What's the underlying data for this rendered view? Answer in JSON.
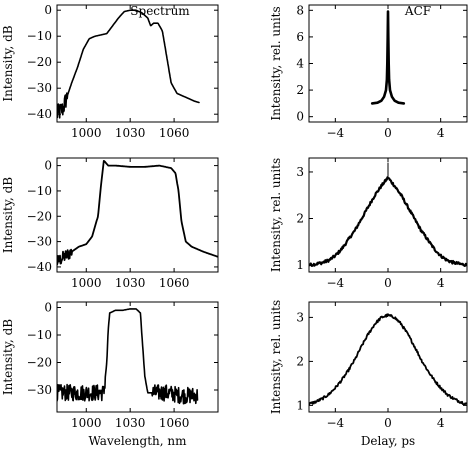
{
  "chart_data": [
    {
      "id": "spectrum-1",
      "type": "line",
      "title": "Spectrum",
      "xlabel": "",
      "ylabel": "Intensity, dB",
      "xlim": [
        980,
        1090
      ],
      "ylim": [
        -43,
        2
      ],
      "xticks": [
        1000,
        1030,
        1060
      ],
      "yticks": [
        0,
        -10,
        -20,
        -30,
        -40
      ],
      "xtick_labels": [
        "1000",
        "1030",
        "1060"
      ],
      "ytick_labels": [
        "0",
        "−10",
        "−20",
        "−30",
        "−40"
      ],
      "noise": {
        "x_from": 980,
        "x_to": 987,
        "amplitude": 3.5
      },
      "series": [
        {
          "x": [
            980,
            984,
            987,
            990,
            994,
            998,
            1002,
            1006,
            1010,
            1014,
            1018,
            1022,
            1026,
            1030,
            1034,
            1038,
            1042,
            1044,
            1046,
            1049,
            1052,
            1055,
            1058,
            1062,
            1066,
            1070,
            1074,
            1077
          ],
          "y": [
            -40,
            -38,
            -33,
            -28,
            -22,
            -15,
            -11,
            -10,
            -9.5,
            -9,
            -6,
            -3,
            -0.5,
            0,
            0,
            -1,
            -3,
            -6,
            -5,
            -5,
            -8,
            -18,
            -28,
            -32,
            -33,
            -34,
            -35,
            -35.5
          ]
        }
      ]
    },
    {
      "id": "acf-1",
      "type": "line",
      "title": "ACF",
      "xlabel": "",
      "ylabel": "Intensity, rel. units",
      "xlim": [
        -6,
        6
      ],
      "ylim": [
        -0.4,
        8.4
      ],
      "xticks": [
        -4,
        0,
        4
      ],
      "yticks": [
        0,
        2,
        4,
        6,
        8
      ],
      "xtick_labels": [
        "−4",
        "0",
        "4"
      ],
      "ytick_labels": [
        "0",
        "2",
        "4",
        "6",
        "8"
      ],
      "series": [
        {
          "x": [
            -1.2,
            -0.8,
            -0.5,
            -0.3,
            -0.15,
            -0.08,
            -0.05,
            -0.02,
            0,
            0.02,
            0.05,
            0.08,
            0.15,
            0.3,
            0.5,
            0.8,
            1.2
          ],
          "y": [
            1,
            1.05,
            1.2,
            1.5,
            2,
            2.8,
            4,
            6,
            7.9,
            6,
            4,
            2.8,
            2,
            1.5,
            1.2,
            1.05,
            1
          ]
        }
      ]
    },
    {
      "id": "spectrum-2",
      "type": "line",
      "title": "",
      "xlabel": "",
      "ylabel": "Intensity, dB",
      "xlim": [
        980,
        1090
      ],
      "ylim": [
        -42,
        3
      ],
      "xticks": [
        1000,
        1030,
        1060
      ],
      "yticks": [
        0,
        -10,
        -20,
        -30,
        -40
      ],
      "xtick_labels": [
        "1000",
        "1030",
        "1060"
      ],
      "ytick_labels": [
        "0",
        "−10",
        "−20",
        "−30",
        "−40"
      ],
      "noise": {
        "x_from": 980,
        "x_to": 990,
        "amplitude": 2.5
      },
      "series": [
        {
          "x": [
            980,
            985,
            990,
            995,
            1000,
            1004,
            1008,
            1010,
            1012,
            1015,
            1020,
            1030,
            1040,
            1050,
            1058,
            1061,
            1063,
            1065,
            1068,
            1072,
            1076,
            1080,
            1085,
            1090
          ],
          "y": [
            -38,
            -36,
            -34,
            -32,
            -31,
            -28,
            -20,
            -8,
            2,
            0,
            0,
            -0.5,
            -0.5,
            0,
            -1,
            -3,
            -10,
            -22,
            -30,
            -32,
            -33,
            -34,
            -35,
            -36
          ]
        }
      ]
    },
    {
      "id": "acf-2",
      "type": "line",
      "title": "",
      "xlabel": "",
      "ylabel": "Intensity, rel. units",
      "xlim": [
        -6,
        6
      ],
      "ylim": [
        0.85,
        3.3
      ],
      "xticks": [
        -4,
        0,
        4
      ],
      "yticks": [
        1,
        2,
        3
      ],
      "xtick_labels": [
        "−4",
        "0",
        "4"
      ],
      "ytick_labels": [
        "1",
        "2",
        "3"
      ],
      "spike": {
        "x": 0,
        "y": 3.2
      },
      "series": [
        {
          "x": [
            -6,
            -5.5,
            -5,
            -4.5,
            -4,
            -3.5,
            -3,
            -2.5,
            -2,
            -1.5,
            -1,
            -0.5,
            0,
            0.5,
            1,
            1.5,
            2,
            2.5,
            3,
            3.5,
            4,
            4.5,
            5,
            5.5,
            6
          ],
          "y": [
            1,
            1.02,
            1.05,
            1.1,
            1.2,
            1.35,
            1.55,
            1.75,
            2,
            2.25,
            2.5,
            2.7,
            2.88,
            2.7,
            2.5,
            2.25,
            2,
            1.75,
            1.55,
            1.35,
            1.2,
            1.1,
            1.05,
            1.02,
            1
          ]
        }
      ]
    },
    {
      "id": "spectrum-3",
      "type": "line",
      "title": "",
      "xlabel": "Wavelength, nm",
      "ylabel": "Intensity, dB",
      "xlim": [
        980,
        1090
      ],
      "ylim": [
        -38,
        2
      ],
      "xticks": [
        1000,
        1030,
        1060
      ],
      "yticks": [
        0,
        -10,
        -20,
        -30
      ],
      "xtick_labels": [
        "1000",
        "1030",
        "1060"
      ],
      "ytick_labels": [
        "0",
        "−10",
        "−20",
        "−30"
      ],
      "noise": {
        "x_from": 980,
        "x_to": 1076,
        "amplitude": 3,
        "skip_from": 1013,
        "skip_to": 1045
      },
      "series": [
        {
          "x": [
            980,
            1000,
            1012,
            1014,
            1015,
            1016,
            1020,
            1025,
            1030,
            1034,
            1037,
            1038,
            1040,
            1042,
            1044,
            1055,
            1065,
            1076
          ],
          "y": [
            -31,
            -31,
            -31,
            -20,
            -8,
            -2,
            -1,
            -1,
            -0.5,
            -0.5,
            -2,
            -10,
            -25,
            -31,
            -31,
            -31,
            -32,
            -32
          ]
        }
      ]
    },
    {
      "id": "acf-3",
      "type": "line",
      "title": "",
      "xlabel": "Delay, ps",
      "ylabel": "Intensity, rel. units",
      "xlim": [
        -6,
        6
      ],
      "ylim": [
        0.85,
        3.35
      ],
      "xticks": [
        -4,
        0,
        4
      ],
      "yticks": [
        1,
        2,
        3
      ],
      "xtick_labels": [
        "−4",
        "0",
        "4"
      ],
      "ytick_labels": [
        "1",
        "2",
        "3"
      ],
      "series": [
        {
          "x": [
            -6,
            -5.5,
            -5,
            -4.5,
            -4,
            -3.5,
            -3,
            -2.5,
            -2,
            -1.5,
            -1,
            -0.5,
            0,
            0.5,
            1,
            1.5,
            2,
            2.5,
            3,
            3.5,
            4,
            4.5,
            5,
            5.5,
            6
          ],
          "y": [
            1.03,
            1.08,
            1.15,
            1.25,
            1.4,
            1.58,
            1.8,
            2.05,
            2.35,
            2.62,
            2.85,
            3.0,
            3.05,
            3.0,
            2.85,
            2.62,
            2.35,
            2.05,
            1.8,
            1.58,
            1.4,
            1.25,
            1.15,
            1.08,
            1.03
          ]
        }
      ]
    }
  ]
}
